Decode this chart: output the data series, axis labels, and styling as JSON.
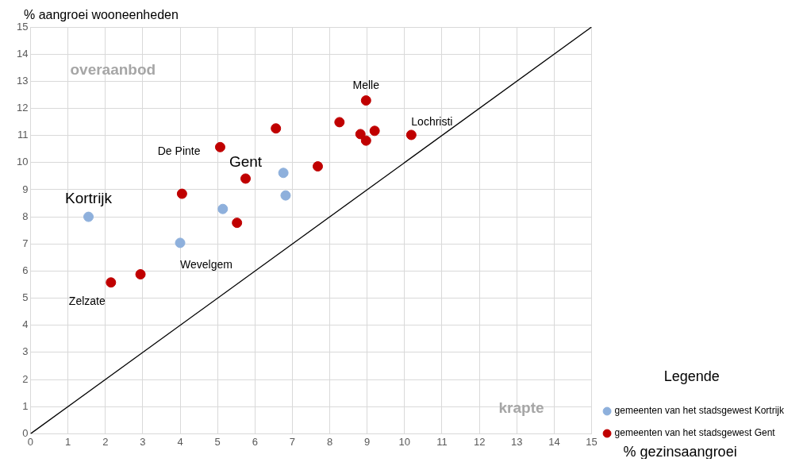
{
  "chart_data": {
    "type": "scatter",
    "xlabel": "% gezinsaangroei",
    "ylabel": "% aangroei wooneenheden",
    "legend_title": "Legende",
    "legend": "right",
    "grid": true,
    "marker": "circle",
    "xlim": [
      0,
      15
    ],
    "ylim": [
      0,
      15
    ],
    "xticks": [
      0,
      1,
      2,
      3,
      4,
      5,
      6,
      7,
      8,
      9,
      10,
      11,
      12,
      13,
      14,
      15
    ],
    "yticks": [
      0,
      1,
      2,
      3,
      4,
      5,
      6,
      7,
      8,
      9,
      10,
      11,
      12,
      13,
      14,
      15
    ],
    "series": [
      {
        "name": "gemeenten van het stadsgewest Kortrijk",
        "color": "#8eb0dc",
        "x": [
          1.55,
          4.0,
          5.14,
          6.76,
          6.82
        ],
        "values": [
          8.0,
          7.04,
          8.29,
          9.62,
          8.79
        ]
      },
      {
        "name": "gemeenten van het stadsgewest Gent",
        "color": "#c00000",
        "x": [
          2.15,
          2.94,
          4.05,
          5.07,
          5.75,
          5.52,
          6.56,
          7.68,
          8.26,
          8.82,
          8.97,
          9.2,
          8.97,
          10.18
        ],
        "values": [
          5.58,
          5.88,
          8.85,
          10.57,
          9.41,
          7.78,
          11.26,
          9.86,
          11.49,
          11.05,
          12.29,
          11.17,
          10.81,
          11.02
        ]
      },
      {
        "type": "line",
        "color": "#000000",
        "x": [
          0,
          15
        ],
        "values": [
          0,
          15
        ],
        "marker": "none"
      }
    ],
    "annotations": [
      {
        "text": "Kortrijk",
        "x": 1.55,
        "y": 8.0
      },
      {
        "text": "Gent",
        "x": 5.75,
        "y": 9.41
      },
      {
        "text": "De Pinte",
        "x": 5.07,
        "y": 10.57
      },
      {
        "text": "Melle",
        "x": 8.97,
        "y": 12.29
      },
      {
        "text": "Lochristi",
        "x": 10.18,
        "y": 11.02
      },
      {
        "text": "Wevelgem",
        "x": 4.0,
        "y": 7.04
      },
      {
        "text": "Zelzate",
        "x": 2.15,
        "y": 5.58
      },
      "overaanbod",
      "krapte"
    ]
  }
}
